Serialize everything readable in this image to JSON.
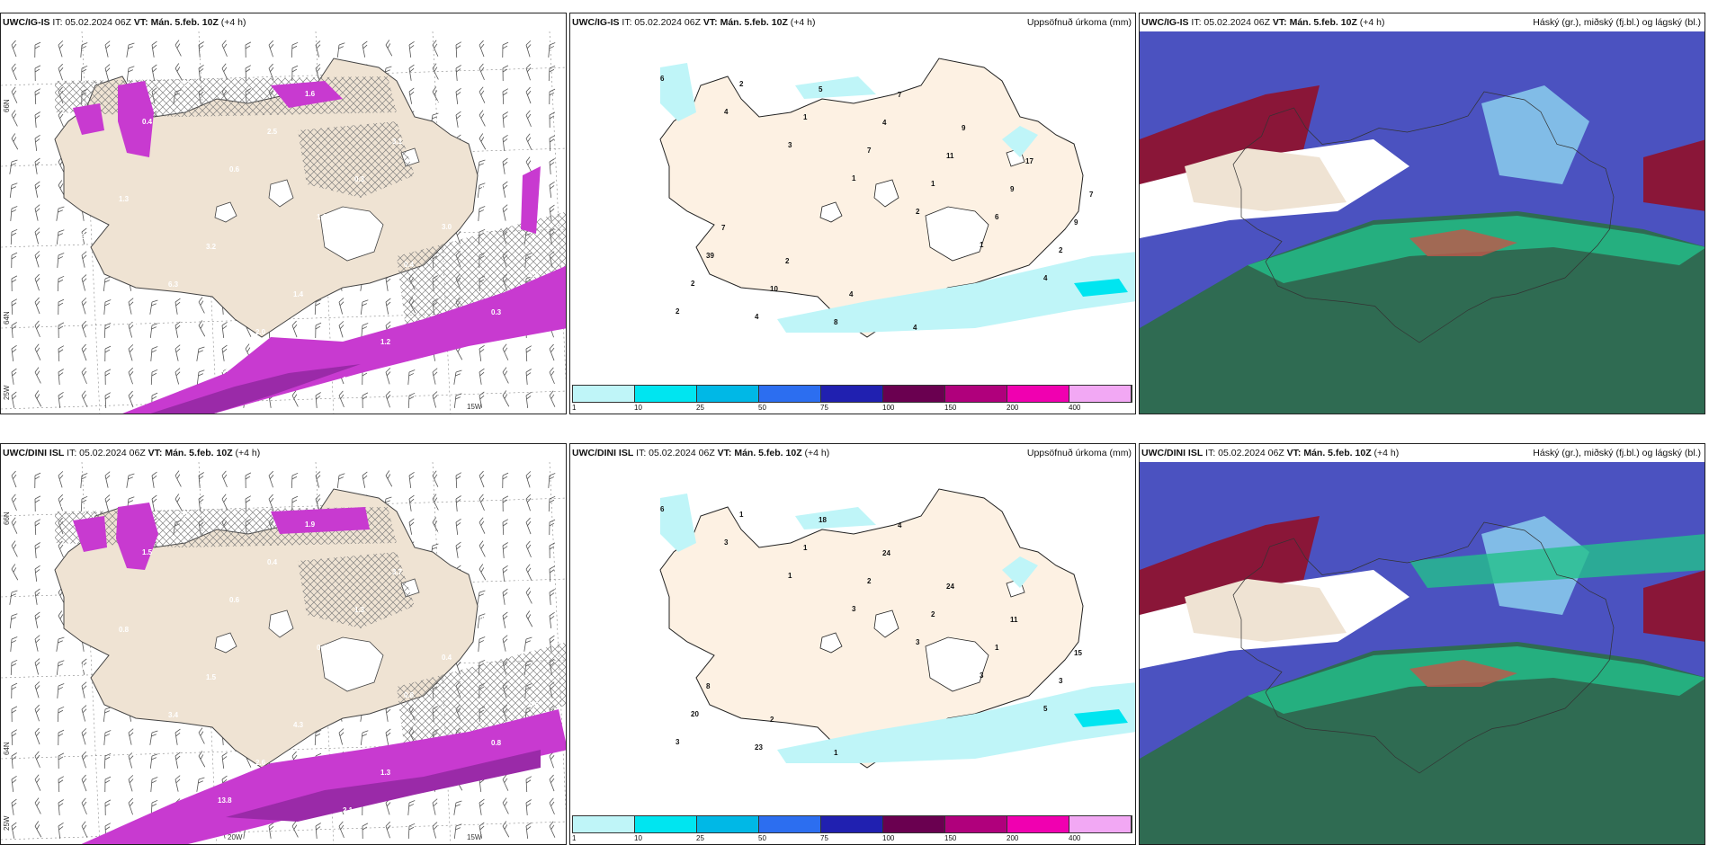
{
  "rows": [
    {
      "model": "UWC/IG-IS",
      "it": "IT: 05.02.2024 06Z",
      "vt": "VT: Mán. 5.feb. 10Z",
      "lead": "(+4 h)",
      "left_lat_labels": [
        "66N",
        "64N",
        "25W"
      ],
      "left_lon_labels": [
        "15W"
      ],
      "left_values": [
        "1",
        "0.4",
        "0.6",
        "1.1",
        "0.4",
        "0.3",
        "1.3",
        "2.3",
        "2.5",
        "0.3",
        "3.0",
        "2.6",
        "5.8",
        "5.3",
        "1.6",
        "3.1",
        "2.6",
        "5.3",
        "6.3",
        "2.0",
        "1.0",
        "2.8",
        "0.5",
        "1.3",
        "3.2",
        "1.4",
        "1.2",
        "3.9"
      ],
      "mid_values": [
        "6",
        "4",
        "3",
        "1",
        "2",
        "1",
        "4",
        "2",
        "2",
        "1",
        "7",
        "1",
        "6",
        "2",
        "2",
        "4",
        "5",
        "4",
        "11",
        "9",
        "9",
        "39",
        "10",
        "8",
        "7",
        "9",
        "17",
        "7",
        "7",
        "2",
        "4",
        "4"
      ]
    },
    {
      "model": "UWC/DINI ISL",
      "it": "IT: 05.02.2024 06Z",
      "vt": "VT: Mán. 5.feb. 10Z",
      "lead": "(+4 h)",
      "left_lat_labels": [
        "66N",
        "64N",
        "25W"
      ],
      "left_lon_labels": [
        "20W",
        "15W"
      ],
      "left_values": [
        "1.2",
        "1.5",
        "0.6",
        "0.4",
        "0.8",
        "0.8",
        "1.6",
        "0.5",
        "0.4",
        "1.3",
        "0.4",
        "0.6",
        "1.5",
        "13.8",
        "1.9",
        "3.7",
        "9.4",
        "1.9",
        "3.4",
        "2.6",
        "2.1",
        "0.4",
        "1.6",
        "0.8",
        "1.5",
        "4.3",
        "1.3"
      ],
      "mid_values": [
        "6",
        "3",
        "1",
        "3",
        "3",
        "3",
        "5",
        "3",
        "1",
        "1",
        "2",
        "2",
        "1",
        "3",
        "20",
        "23",
        "18",
        "24",
        "24",
        "11",
        "15",
        "8",
        "2",
        "1",
        "4"
      ]
    }
  ],
  "middle_title": "Uppsöfnuð úrkoma (mm)",
  "right_title": "Háský (gr.), miðský (fj.bl.) og lágský (bl.)",
  "colorbar": {
    "colors": [
      "#bff5f8",
      "#00e5f0",
      "#00b8e6",
      "#2c6ef0",
      "#2020b0",
      "#6a0050",
      "#b0007c",
      "#f000b0",
      "#f2a8f4"
    ],
    "ticks": [
      "1",
      "10",
      "25",
      "50",
      "75",
      "100",
      "150",
      "200",
      "400"
    ]
  }
}
